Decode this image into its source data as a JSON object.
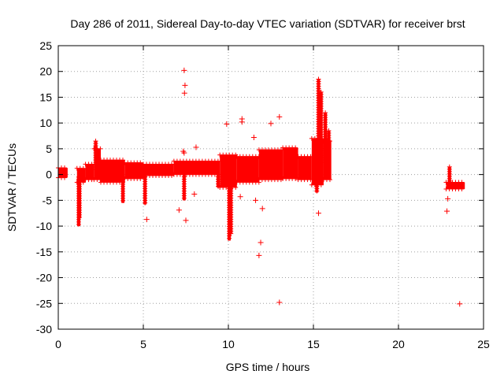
{
  "chart_data": {
    "type": "scatter",
    "title": "Day 286 of 2011, Sidereal Day-to-day VTEC variation (SDTVAR) for receiver brst",
    "xlabel": "GPS time / hours",
    "ylabel": "SDTVAR / TECUs",
    "xlim": [
      0,
      25
    ],
    "ylim": [
      -30,
      25
    ],
    "xticks": [
      0,
      5,
      10,
      15,
      20,
      25
    ],
    "yticks": [
      -30,
      -25,
      -20,
      -15,
      -10,
      -5,
      0,
      5,
      10,
      15,
      20,
      25
    ],
    "grid": true,
    "marker": "+",
    "color": "#ff0000",
    "band_segments": [
      {
        "x0": 0.0,
        "x1": 0.55,
        "lo": -0.6,
        "hi": 1.3
      },
      {
        "x0": 1.1,
        "x1": 1.6,
        "lo": -1.5,
        "hi": 1.2
      },
      {
        "x0": 1.6,
        "x1": 2.1,
        "lo": -1.0,
        "hi": 2.0
      },
      {
        "x0": 2.1,
        "x1": 2.5,
        "lo": -1.0,
        "hi": 5.0
      },
      {
        "x0": 2.5,
        "x1": 3.9,
        "lo": -1.5,
        "hi": 2.8
      },
      {
        "x0": 3.9,
        "x1": 5.0,
        "lo": -0.8,
        "hi": 2.3
      },
      {
        "x0": 5.0,
        "x1": 6.8,
        "lo": -0.2,
        "hi": 2.0
      },
      {
        "x0": 6.8,
        "x1": 9.5,
        "lo": 0.0,
        "hi": 2.6
      },
      {
        "x0": 9.5,
        "x1": 10.5,
        "lo": -2.5,
        "hi": 3.8
      },
      {
        "x0": 10.5,
        "x1": 11.8,
        "lo": -1.5,
        "hi": 3.5
      },
      {
        "x0": 11.8,
        "x1": 13.2,
        "lo": -1.0,
        "hi": 4.8
      },
      {
        "x0": 13.2,
        "x1": 14.1,
        "lo": -0.8,
        "hi": 5.2
      },
      {
        "x0": 14.1,
        "x1": 14.9,
        "lo": -1.0,
        "hi": 3.5
      },
      {
        "x0": 14.9,
        "x1": 15.6,
        "lo": -2.0,
        "hi": 7.0
      },
      {
        "x0": 15.6,
        "x1": 16.05,
        "lo": -1.0,
        "hi": 6.5
      },
      {
        "x0": 22.8,
        "x1": 23.9,
        "lo": -2.8,
        "hi": -1.5
      }
    ],
    "spikes": [
      {
        "x": 1.2,
        "y0": -0.5,
        "y1": -10.0
      },
      {
        "x": 1.25,
        "y0": -0.5,
        "y1": -8.5
      },
      {
        "x": 2.2,
        "y0": 1.0,
        "y1": 6.5
      },
      {
        "x": 3.8,
        "y0": -0.5,
        "y1": -5.5
      },
      {
        "x": 5.1,
        "y0": 0.0,
        "y1": -5.8
      },
      {
        "x": 7.4,
        "y0": 0.0,
        "y1": -5.0
      },
      {
        "x": 9.4,
        "y0": 0.0,
        "y1": -2.5
      },
      {
        "x": 10.05,
        "y0": 0.0,
        "y1": -12.8
      },
      {
        "x": 10.15,
        "y0": 0.0,
        "y1": -11.5
      },
      {
        "x": 15.3,
        "y0": 5.0,
        "y1": 18.5
      },
      {
        "x": 15.45,
        "y0": 3.0,
        "y1": 16.0
      },
      {
        "x": 15.7,
        "y0": 2.0,
        "y1": 12.0
      },
      {
        "x": 15.9,
        "y0": 3.0,
        "y1": 8.5
      },
      {
        "x": 15.2,
        "y0": 0.0,
        "y1": -3.5
      },
      {
        "x": 23.0,
        "y0": -1.8,
        "y1": 1.5
      }
    ],
    "points": [
      {
        "x": 7.4,
        "y": 20.2
      },
      {
        "x": 7.45,
        "y": 17.3
      },
      {
        "x": 7.42,
        "y": 15.8
      },
      {
        "x": 13.0,
        "y": 11.2
      },
      {
        "x": 10.8,
        "y": 10.8
      },
      {
        "x": 10.8,
        "y": 10.2
      },
      {
        "x": 9.9,
        "y": 9.8
      },
      {
        "x": 12.5,
        "y": 9.9
      },
      {
        "x": 11.5,
        "y": 7.2
      },
      {
        "x": 8.1,
        "y": 5.3
      },
      {
        "x": 7.35,
        "y": 4.5
      },
      {
        "x": 7.4,
        "y": 4.2
      },
      {
        "x": 5.2,
        "y": -8.7
      },
      {
        "x": 7.5,
        "y": -8.9
      },
      {
        "x": 7.1,
        "y": -6.9
      },
      {
        "x": 8.0,
        "y": -3.8
      },
      {
        "x": 10.7,
        "y": -4.3
      },
      {
        "x": 11.6,
        "y": -5.0
      },
      {
        "x": 12.0,
        "y": -6.6
      },
      {
        "x": 11.9,
        "y": -13.2
      },
      {
        "x": 11.8,
        "y": -15.7
      },
      {
        "x": 13.0,
        "y": -24.8
      },
      {
        "x": 15.3,
        "y": -7.5
      },
      {
        "x": 22.9,
        "y": -4.7
      },
      {
        "x": 22.85,
        "y": -7.1
      },
      {
        "x": 23.6,
        "y": -25.1
      }
    ]
  }
}
